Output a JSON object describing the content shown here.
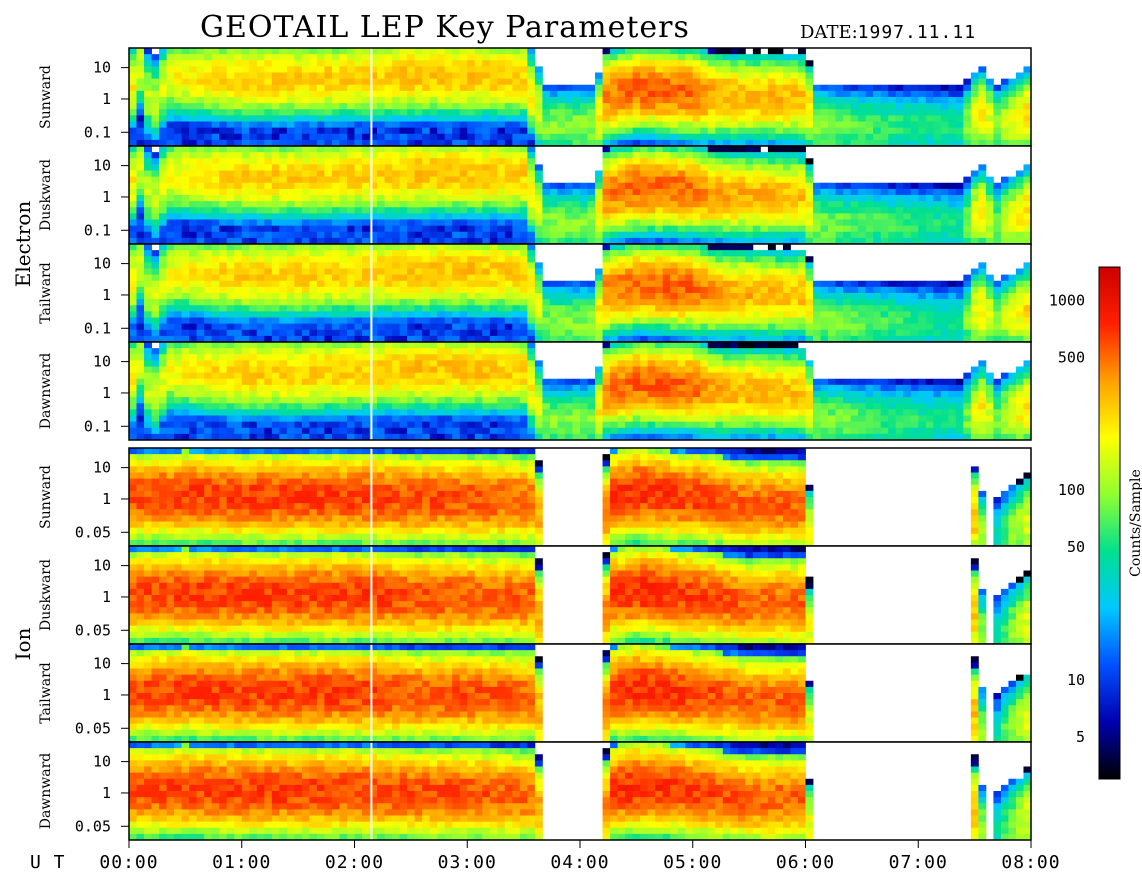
{
  "title": "GEOTAIL LEP Key Parameters",
  "date": {
    "label": "DATE:",
    "value": "1997.11.11"
  },
  "chart_data": {
    "type": "heatmap",
    "x_axis": {
      "prefix": "U T",
      "ticks": [
        "00:00",
        "01:00",
        "02:00",
        "03:00",
        "04:00",
        "05:00",
        "06:00",
        "07:00",
        "08:00"
      ],
      "range_hours": [
        0,
        8
      ]
    },
    "groups": [
      {
        "name": "Electron",
        "panels": [
          {
            "name": "Sunward",
            "y_ticks": [
              "10",
              "1",
              "0.1"
            ]
          },
          {
            "name": "Duskward",
            "y_ticks": [
              "10",
              "1",
              "0.1"
            ]
          },
          {
            "name": "Tailward",
            "y_ticks": [
              "10",
              "1",
              "0.1"
            ]
          },
          {
            "name": "Dawnward",
            "y_ticks": [
              "10",
              "1",
              "0.1"
            ]
          }
        ]
      },
      {
        "name": "Ion",
        "panels": [
          {
            "name": "Sunward",
            "y_ticks": [
              "10",
              "1",
              "0.05"
            ]
          },
          {
            "name": "Duskward",
            "y_ticks": [
              "10",
              "1",
              "0.05"
            ]
          },
          {
            "name": "Tailward",
            "y_ticks": [
              "10",
              "1",
              "0.05"
            ]
          },
          {
            "name": "Dawnward",
            "y_ticks": [
              "10",
              "1",
              "0.05"
            ]
          }
        ]
      }
    ],
    "colorbar": {
      "label": "Counts/Sample",
      "scale": "log",
      "range": [
        3,
        1500
      ],
      "ticks": [
        {
          "value": 1000,
          "label": "1000"
        },
        {
          "value": 500,
          "label": "500"
        },
        {
          "value": 100,
          "label": "100"
        },
        {
          "value": 50,
          "label": "50"
        },
        {
          "value": 10,
          "label": "10"
        },
        {
          "value": 5,
          "label": "5"
        }
      ],
      "colors": [
        "#000000",
        "#0000b0",
        "#0050ff",
        "#00c8ff",
        "#00e090",
        "#90ff30",
        "#ffff00",
        "#ffa000",
        "#ff2000",
        "#cc0000"
      ]
    },
    "data_gap_hour": 2.15,
    "electron_profile": [
      [
        0.0,
        8,
        0.55
      ],
      [
        0.1,
        5,
        0.8
      ],
      [
        0.2,
        4,
        0.4
      ],
      [
        0.35,
        6,
        0.7
      ],
      [
        0.5,
        7,
        0.7
      ],
      [
        1.0,
        9,
        0.68
      ],
      [
        1.5,
        9,
        0.68
      ],
      [
        2.0,
        9,
        0.7
      ],
      [
        2.15,
        9,
        0.7
      ],
      [
        2.5,
        10,
        0.72
      ],
      [
        3.0,
        10,
        0.72
      ],
      [
        3.5,
        9,
        0.7
      ],
      [
        3.7,
        3,
        0.2
      ],
      [
        4.15,
        3,
        0.2
      ],
      [
        4.2,
        15,
        0.5
      ],
      [
        4.5,
        18,
        0.58
      ],
      [
        5.0,
        18,
        0.55
      ],
      [
        5.2,
        12,
        0.5
      ],
      [
        6.0,
        10,
        0.48
      ],
      [
        6.1,
        3,
        0.2
      ],
      [
        6.8,
        2,
        0.2
      ],
      [
        7.4,
        1.5,
        0.2
      ],
      [
        7.55,
        8,
        0.35
      ],
      [
        7.7,
        3,
        0.2
      ],
      [
        8.0,
        9,
        0.35
      ]
    ],
    "ion_profile": [
      [
        0.0,
        20,
        0.5
      ],
      [
        0.5,
        22,
        0.52
      ],
      [
        1.0,
        22,
        0.5
      ],
      [
        1.5,
        22,
        0.5
      ],
      [
        2.15,
        22,
        0.5
      ],
      [
        2.5,
        20,
        0.48
      ],
      [
        3.0,
        20,
        0.48
      ],
      [
        3.6,
        18,
        0.46
      ],
      [
        3.7,
        0,
        0
      ],
      [
        4.2,
        0,
        0
      ],
      [
        4.25,
        22,
        0.5
      ],
      [
        4.5,
        25,
        0.55
      ],
      [
        5.0,
        22,
        0.5
      ],
      [
        5.5,
        18,
        0.42
      ],
      [
        6.0,
        18,
        0.42
      ],
      [
        6.05,
        0,
        0
      ],
      [
        7.45,
        0,
        0
      ],
      [
        7.5,
        10,
        0.3
      ],
      [
        7.6,
        0,
        0
      ],
      [
        7.9,
        4,
        0.2
      ],
      [
        8.0,
        6,
        0.25
      ]
    ]
  }
}
